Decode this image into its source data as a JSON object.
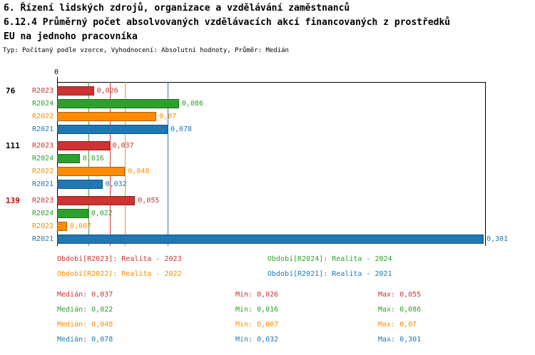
{
  "header": {
    "line1": "6. Řízení lidských zdrojů, organizace a vzdělávání zaměstnanců",
    "line2": "6.12.4 Průměrný počet absolvovaných vzdělávacích akcí financovaných z prostředků",
    "line3": "EU na jednoho pracovníka",
    "meta": "Typ: Počítaný podle vzorce, Vyhodnocení: Absolutní hodnoty, Průměr: Medián"
  },
  "chart_data": {
    "type": "bar",
    "orientation": "horizontal",
    "title": "6.12.4 Průměrný počet absolvovaných vzdělávacích akcí financovaných z prostředků EU na jednoho pracovníka",
    "x_axis": {
      "origin_label": "0",
      "min": 0,
      "max": 0.302,
      "gridlines": false
    },
    "series_order": [
      "R2023",
      "R2024",
      "R2022",
      "R2021"
    ],
    "series_colors": {
      "R2023": "#cc3333",
      "R2024": "#2ca02c",
      "R2022": "#ff8c00",
      "R2021": "#1f77b4"
    },
    "groups": [
      {
        "label": "76",
        "label_color": "#000000",
        "bars": [
          {
            "series": "R2023",
            "value": 0.026,
            "display": "0,026"
          },
          {
            "series": "R2024",
            "value": 0.086,
            "display": "0,086"
          },
          {
            "series": "R2022",
            "value": 0.07,
            "display": "0,07"
          },
          {
            "series": "R2021",
            "value": 0.078,
            "display": "0,078"
          }
        ]
      },
      {
        "label": "111",
        "label_color": "#000000",
        "bars": [
          {
            "series": "R2023",
            "value": 0.037,
            "display": "0,037"
          },
          {
            "series": "R2024",
            "value": 0.016,
            "display": "0,016"
          },
          {
            "series": "R2022",
            "value": 0.048,
            "display": "0,048"
          },
          {
            "series": "R2021",
            "value": 0.032,
            "display": "0,032"
          }
        ]
      },
      {
        "label": "139",
        "label_color": "#cc0000",
        "bars": [
          {
            "series": "R2023",
            "value": 0.055,
            "display": "0,055"
          },
          {
            "series": "R2024",
            "value": 0.022,
            "display": "0,022"
          },
          {
            "series": "R2022",
            "value": 0.007,
            "display": "0,007"
          },
          {
            "series": "R2021",
            "value": 0.301,
            "display": "0,301"
          }
        ]
      }
    ],
    "median_lines": [
      {
        "series": "R2023",
        "value": 0.037,
        "color": "#cc3333"
      },
      {
        "series": "R2024",
        "value": 0.022,
        "color": "#2ca02c"
      },
      {
        "series": "R2022",
        "value": 0.048,
        "color": "#ff8c00"
      },
      {
        "series": "R2021",
        "value": 0.078,
        "color": "#1f77b4"
      }
    ],
    "legend": {
      "items": [
        {
          "label": "Období[R2023]: Realita - 2023",
          "color": "#cc3333"
        },
        {
          "label": "Období[R2024]: Realita - 2024",
          "color": "#2ca02c"
        },
        {
          "label": "Období[R2022]: Realita - 2022",
          "color": "#ff8c00"
        },
        {
          "label": "Období[R2021]: Realita - 2021",
          "color": "#1f77b4"
        }
      ]
    },
    "stats": {
      "rows": [
        {
          "median_text": "Medián: 0,037",
          "min_text": "Min: 0,026",
          "max_text": "Max: 0,055",
          "color": "#cc3333"
        },
        {
          "median_text": "Medián: 0,022",
          "min_text": "Min: 0,016",
          "max_text": "Max: 0,086",
          "color": "#2ca02c"
        },
        {
          "median_text": "Medián: 0,048",
          "min_text": "Min: 0,007",
          "max_text": "Max: 0,07",
          "color": "#ff8c00"
        },
        {
          "median_text": "Medián: 0,078",
          "min_text": "Min: 0,032",
          "max_text": "Max: 0,301",
          "color": "#1f77b4"
        }
      ]
    }
  }
}
